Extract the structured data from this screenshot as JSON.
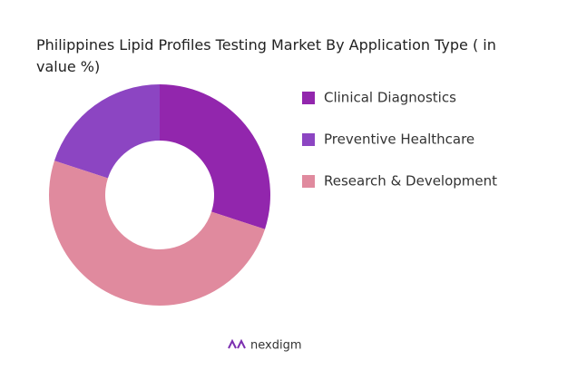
{
  "chart_data": {
    "type": "donut",
    "title": "Philippines Lipid Profiles Testing Market By Application Type ( in value %)",
    "categories": [
      "Clinical Diagnostics",
      "Preventive Healthcare",
      "Research & Development"
    ],
    "values": [
      30,
      20,
      50
    ],
    "colors": [
      "#9226ad",
      "#8c45c2",
      "#e08a9e"
    ],
    "legend": "right"
  },
  "brand": "nexdigm"
}
